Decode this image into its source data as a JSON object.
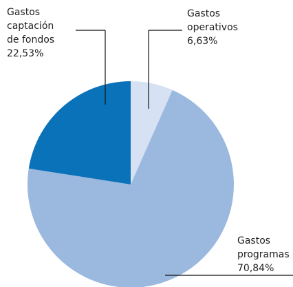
{
  "chart_data": {
    "type": "pie",
    "categories": [
      "Gastos operativos",
      "Gastos programas",
      "Gastos captación de fondos"
    ],
    "values": [
      6.63,
      70.84,
      22.53
    ],
    "value_labels": [
      "6,63%",
      "70,84%",
      "22,53%"
    ],
    "colors": [
      "#d6e2f3",
      "#9bb9de",
      "#0a72b9"
    ]
  }
}
